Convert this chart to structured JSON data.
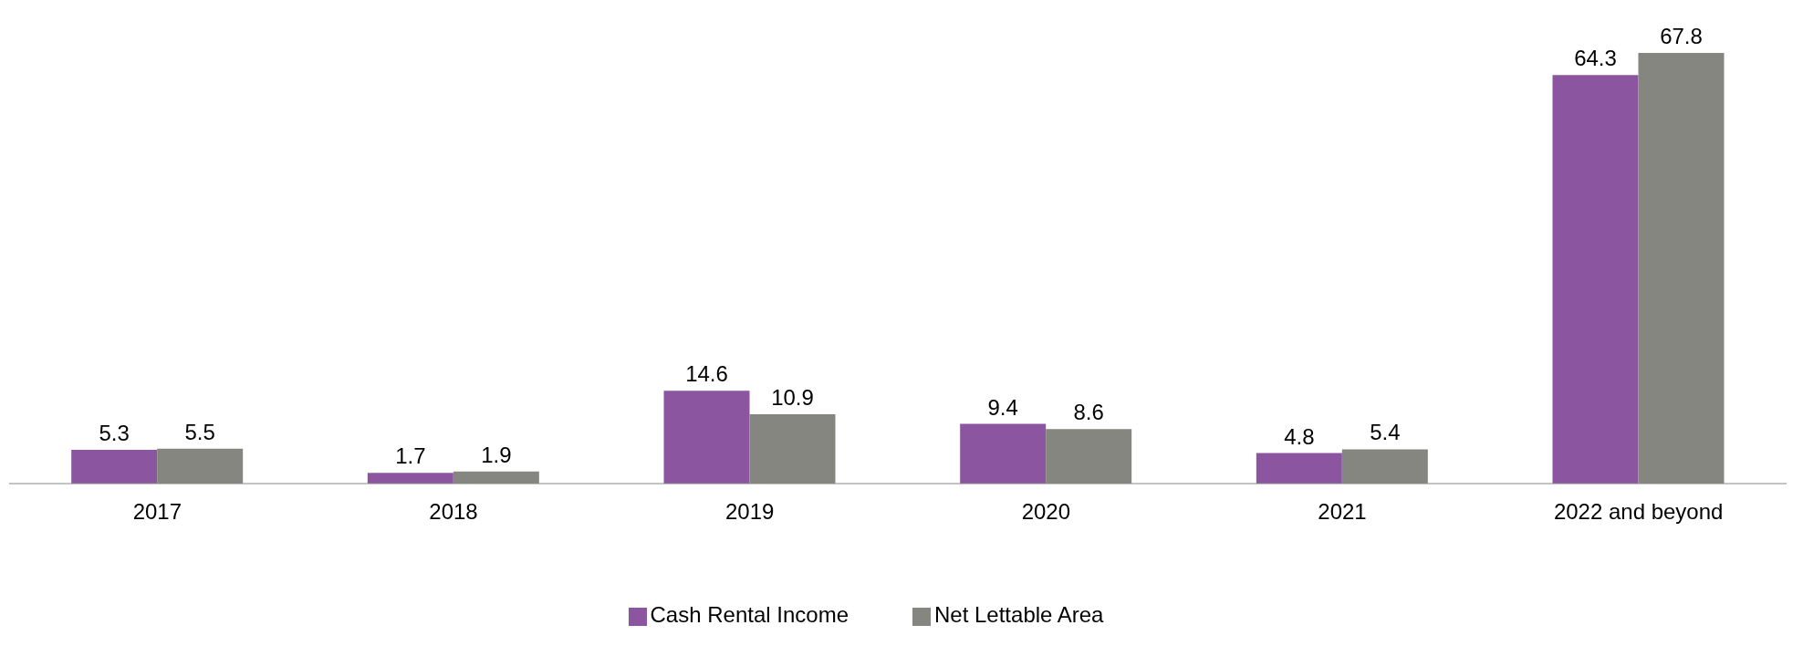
{
  "chart_data": {
    "type": "bar",
    "categories": [
      "2017",
      "2018",
      "2019",
      "2020",
      "2021",
      "2022 and beyond"
    ],
    "series": [
      {
        "name": "Cash Rental Income",
        "color": "#8b55a0",
        "values": [
          5.3,
          1.7,
          14.6,
          9.4,
          4.8,
          64.3
        ]
      },
      {
        "name": "Net Lettable Area",
        "color": "#868680",
        "values": [
          5.5,
          1.9,
          10.9,
          8.6,
          5.4,
          67.8
        ]
      }
    ],
    "data_labels": true,
    "legend": "bottom",
    "grid": false
  }
}
